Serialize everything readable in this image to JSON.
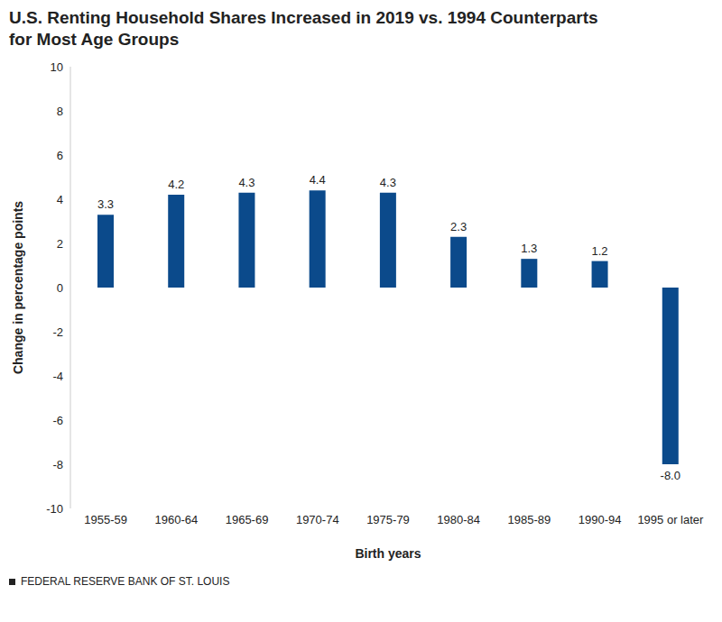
{
  "chart_data": {
    "type": "bar",
    "title": "U.S. Renting Household Shares Increased in 2019 vs. 1994 Counterparts for Most Age Groups",
    "x_label": "Birth years",
    "y_label": "Change in percentage points",
    "source": "FEDERAL RESERVE BANK OF ST. LOUIS",
    "categories": [
      "1955-59",
      "1960-64",
      "1965-69",
      "1970-74",
      "1975-79",
      "1980-84",
      "1985-89",
      "1990-94",
      "1995 or later"
    ],
    "values": [
      3.3,
      4.2,
      4.3,
      4.4,
      4.3,
      2.3,
      1.3,
      1.2,
      -8.0
    ],
    "value_labels": [
      "3.3",
      "4.2",
      "4.3",
      "4.4",
      "4.3",
      "2.3",
      "1.3",
      "1.2",
      "-8.0"
    ],
    "color": "#0b4a8b",
    "ylim": [
      -10,
      10
    ],
    "yticks": [
      -10,
      -8,
      -6,
      -4,
      -2,
      0,
      2,
      4,
      6,
      8,
      10
    ],
    "grid": false,
    "data_labels": true
  }
}
